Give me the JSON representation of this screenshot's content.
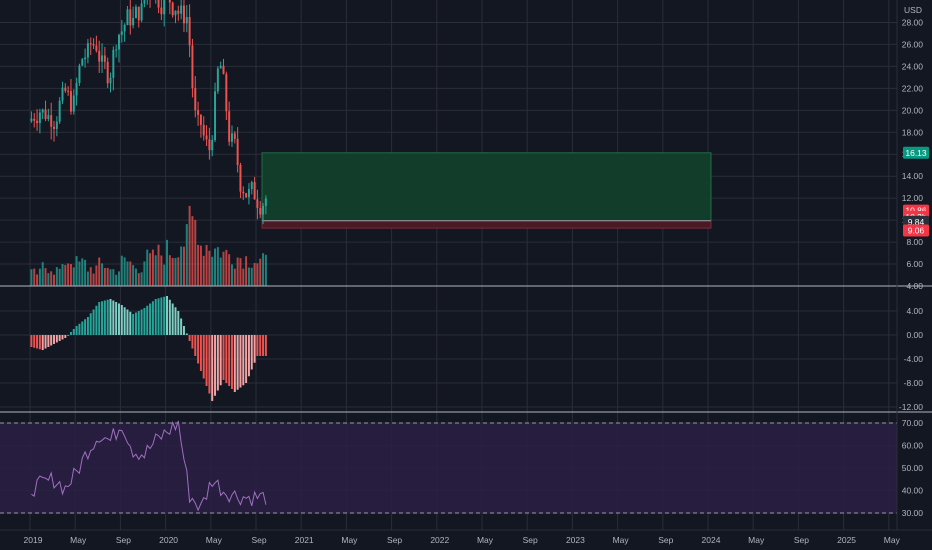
{
  "chart_data": [
    {
      "type": "candlestick",
      "currency": "USD",
      "x": [
        "2019-01",
        "2019-02",
        "2019-03",
        "2019-04",
        "2019-05",
        "2019-06",
        "2019-07",
        "2019-08",
        "2019-09",
        "2019-10",
        "2019-11",
        "2019-12",
        "2020-01",
        "2020-02",
        "2020-03",
        "2020-04",
        "2020-05",
        "2020-06",
        "2020-07",
        "2020-08",
        "2020-09"
      ],
      "close": [
        20.0,
        19.5,
        21.0,
        20.5,
        25.0,
        26.0,
        23.5,
        27.0,
        28.5,
        29.0,
        31.0,
        30.0,
        29.5,
        28.5,
        18.5,
        16.5,
        24.0,
        17.0,
        13.0,
        12.5,
        12.0
      ],
      "y_ticks": [
        "4.00",
        "6.00",
        "8.00",
        "10.00",
        "12.00",
        "14.00",
        "16.00",
        "18.00",
        "20.00",
        "22.00",
        "24.00",
        "26.00",
        "28.00"
      ],
      "ylim": [
        4,
        29.5
      ],
      "price_labels": [
        {
          "value": 16.13,
          "text": "16.13",
          "color": "#089981"
        },
        {
          "value": 10.86,
          "text": "10.86",
          "color": "#f23645"
        },
        {
          "value": 10.3,
          "text": "10.3h",
          "color": "#f23645"
        },
        {
          "value": 9.84,
          "text": "9.84",
          "color": "#2a2e39"
        },
        {
          "value": 9.06,
          "text": "9.06",
          "color": "#f23645"
        }
      ],
      "long_position": {
        "entry": 9.94,
        "target": 16.13,
        "stop": 9.27,
        "start": "2020-09",
        "end": "2024-01"
      }
    },
    {
      "type": "bar",
      "series": [
        {
          "values": [
            0.8,
            1.2,
            1.0,
            1.6,
            1.4,
            1.1,
            1.3,
            1.0,
            1.5,
            1.2,
            1.7,
            2.0,
            2.2,
            2.8,
            4.0,
            2.6,
            2.3,
            2.0,
            1.8,
            1.7,
            1.5
          ]
        }
      ]
    },
    {
      "type": "bar",
      "x": [
        "2019-01",
        "2019-02",
        "2019-03",
        "2019-04",
        "2019-05",
        "2019-06",
        "2019-07",
        "2019-08",
        "2019-09",
        "2019-10",
        "2019-11",
        "2019-12",
        "2020-01",
        "2020-02",
        "2020-03",
        "2020-04",
        "2020-05",
        "2020-06",
        "2020-07",
        "2020-08",
        "2020-09"
      ],
      "values": [
        -2.0,
        -2.5,
        -1.5,
        -0.5,
        1.5,
        3.0,
        5.5,
        6.0,
        5.0,
        3.5,
        4.5,
        6.0,
        6.5,
        4.0,
        -1.0,
        -6.0,
        -11.0,
        -7.5,
        -9.5,
        -8.0,
        -3.5
      ],
      "y_ticks": [
        "-12.00",
        "-8.00",
        "-4.00",
        "0.00",
        "4.00"
      ],
      "ylim": [
        -12.5,
        7.5
      ]
    },
    {
      "type": "line",
      "x": [
        "2019-01",
        "2019-02",
        "2019-03",
        "2019-04",
        "2019-05",
        "2019-06",
        "2019-07",
        "2019-08",
        "2019-09",
        "2019-10",
        "2019-11",
        "2019-12",
        "2020-01",
        "2020-02",
        "2020-03",
        "2020-04",
        "2020-05",
        "2020-06",
        "2020-07",
        "2020-08",
        "2020-09"
      ],
      "values": [
        41,
        43,
        45,
        41,
        48,
        58,
        65,
        62,
        70,
        58,
        56,
        62,
        66,
        70,
        38,
        32,
        45,
        40,
        38,
        37,
        37
      ],
      "y_ticks": [
        "30.00",
        "40.00",
        "50.00",
        "60.00",
        "70.00"
      ],
      "ylim": [
        26,
        74
      ],
      "bands": [
        70,
        30
      ]
    }
  ],
  "time_axis": [
    "2019",
    "May",
    "Sep",
    "2020",
    "May",
    "Sep",
    "2021",
    "May",
    "Sep",
    "2022",
    "May",
    "Sep",
    "2023",
    "May",
    "Sep",
    "2024",
    "May",
    "Sep",
    "2025",
    "May"
  ],
  "colors": {
    "background": "#131722",
    "grid": "#2a2e39",
    "up": "#26a69a",
    "down": "#ef5350",
    "axis_text": "#b2b5be",
    "rsi_line": "#a070c0",
    "rsi_fill": "#2a1f44",
    "profit_zone": "#123d2b",
    "loss_zone": "#4a1a24"
  }
}
